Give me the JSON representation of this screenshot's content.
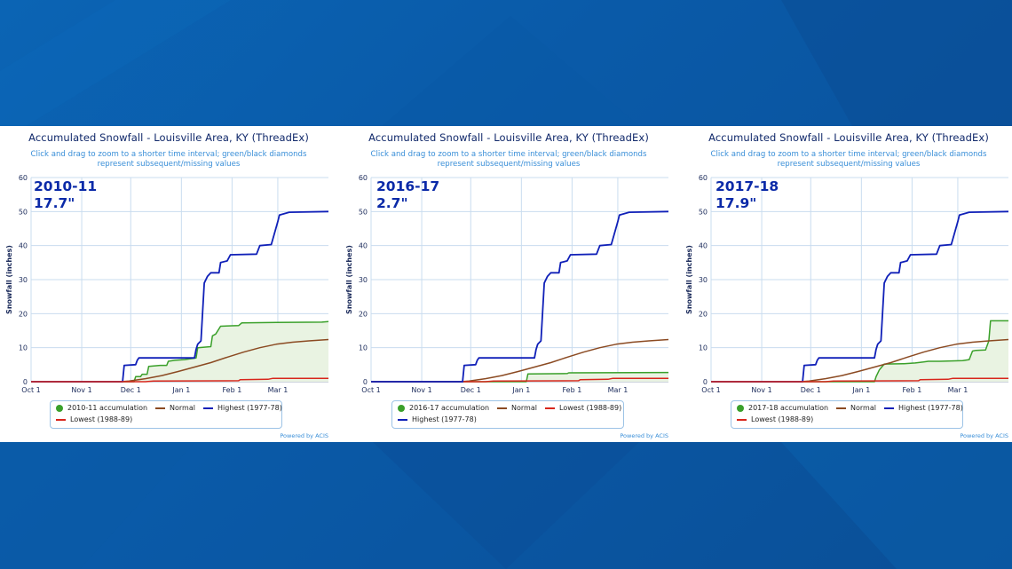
{
  "panels": [
    {
      "title": "Accumulated Snowfall - Louisville Area, KY (ThreadEx)",
      "subtitle": "Click and drag to zoom to a shorter time interval; green/black diamonds represent subsequent/missing values",
      "season": "2010-11",
      "total": "17.7\"",
      "legend": [
        "2010-11 accumulation",
        "Normal",
        "Highest (1977-78)",
        "Lowest (1988-89)"
      ],
      "powered_by": "Powered by ACIS"
    },
    {
      "title": "Accumulated Snowfall - Louisville Area, KY (ThreadEx)",
      "subtitle": "Click and drag to zoom to a shorter time interval; green/black diamonds represent subsequent/missing values",
      "season": "2016-17",
      "total": "2.7\"",
      "legend": [
        "2016-17 accumulation",
        "Normal",
        "Lowest (1988-89)",
        "Highest (1977-78)"
      ],
      "powered_by": "Powered by ACIS"
    },
    {
      "title": "Accumulated Snowfall - Louisville Area, KY (ThreadEx)",
      "subtitle": "Click and drag to zoom to a shorter time interval; green/black diamonds represent subsequent/missing values",
      "season": "2017-18",
      "total": "17.9\"",
      "legend": [
        "2017-18 accumulation",
        "Normal",
        "Highest (1977-78)",
        "Lowest (1988-89)"
      ],
      "powered_by": "Powered by ACIS"
    }
  ],
  "colors": {
    "accumulation": "#3aa02a",
    "accumulation_fill": "#e9f3e2",
    "normal": "#8b4a22",
    "highest": "#1020b8",
    "lowest": "#d8261c",
    "grid": "#c9dcef",
    "axis_text": "#1a2a5a"
  },
  "chart_data": [
    {
      "type": "line",
      "title": "Accumulated Snowfall - Louisville Area, KY (ThreadEx)",
      "ylabel": "Snowfall (inches)",
      "xlabel": "",
      "ylim": [
        0,
        60
      ],
      "yticks": [
        0,
        10,
        20,
        30,
        40,
        50,
        60
      ],
      "x_ticks": [
        {
          "day": 0,
          "label": "Oct 1"
        },
        {
          "day": 31,
          "label": "Nov 1"
        },
        {
          "day": 61,
          "label": "Dec 1"
        },
        {
          "day": 92,
          "label": "Jan 1"
        },
        {
          "day": 123,
          "label": "Feb 1"
        },
        {
          "day": 151,
          "label": "Mar 1"
        }
      ],
      "xlim_days_since_oct1": [
        0,
        182
      ],
      "grid": true,
      "legend_position": "bottom",
      "series": [
        {
          "name": "2010-11 accumulation",
          "points": [
            [
              0,
              0
            ],
            [
              63,
              0
            ],
            [
              64,
              1.5
            ],
            [
              67,
              1.5
            ],
            [
              68,
              2.2
            ],
            [
              71,
              2.2
            ],
            [
              72,
              4.5
            ],
            [
              79,
              4.8
            ],
            [
              83,
              4.8
            ],
            [
              84,
              6.0
            ],
            [
              88,
              6.3
            ],
            [
              94,
              6.5
            ],
            [
              101,
              7.0
            ],
            [
              102,
              10.0
            ],
            [
              110,
              10.3
            ],
            [
              111,
              13.5
            ],
            [
              113,
              14.0
            ],
            [
              116,
              16.3
            ],
            [
              127,
              16.5
            ],
            [
              129,
              17.3
            ],
            [
              150,
              17.4
            ],
            [
              178,
              17.5
            ],
            [
              182,
              17.7
            ]
          ]
        },
        {
          "name": "Normal",
          "points": [
            [
              0,
              0
            ],
            [
              55,
              0
            ],
            [
              60,
              0.2
            ],
            [
              70,
              0.9
            ],
            [
              80,
              1.8
            ],
            [
              90,
              3.0
            ],
            [
              100,
              4.3
            ],
            [
              110,
              5.6
            ],
            [
              120,
              7.2
            ],
            [
              130,
              8.7
            ],
            [
              140,
              10.0
            ],
            [
              150,
              11.0
            ],
            [
              160,
              11.6
            ],
            [
              170,
              12.0
            ],
            [
              182,
              12.4
            ]
          ]
        },
        {
          "name": "Highest (1977-78)",
          "points": [
            [
              0,
              0
            ],
            [
              56,
              0
            ],
            [
              57,
              4.8
            ],
            [
              64,
              5.0
            ],
            [
              65,
              6.3
            ],
            [
              66,
              7.0
            ],
            [
              100,
              7.0
            ],
            [
              101,
              9.5
            ],
            [
              102,
              11.0
            ],
            [
              104,
              12.0
            ],
            [
              106,
              29.0
            ],
            [
              108,
              31.0
            ],
            [
              110,
              32.0
            ],
            [
              115,
              32.0
            ],
            [
              116,
              35.0
            ],
            [
              120,
              35.5
            ],
            [
              122,
              37.3
            ],
            [
              138,
              37.5
            ],
            [
              140,
              40.0
            ],
            [
              147,
              40.3
            ],
            [
              151,
              47.0
            ],
            [
              152,
              49.0
            ],
            [
              158,
              49.8
            ],
            [
              182,
              50.0
            ]
          ]
        },
        {
          "name": "Lowest (1988-89)",
          "points": [
            [
              0,
              0
            ],
            [
              70,
              0
            ],
            [
              75,
              0.2
            ],
            [
              127,
              0.3
            ],
            [
              128,
              0.6
            ],
            [
              145,
              0.7
            ],
            [
              148,
              1.0
            ],
            [
              182,
              1.0
            ]
          ]
        }
      ]
    },
    {
      "type": "line",
      "title": "Accumulated Snowfall - Louisville Area, KY (ThreadEx)",
      "ylabel": "Snowfall (inches)",
      "xlabel": "",
      "ylim": [
        0,
        60
      ],
      "yticks": [
        0,
        10,
        20,
        30,
        40,
        50,
        60
      ],
      "x_ticks": [
        {
          "day": 0,
          "label": "Oct 1"
        },
        {
          "day": 31,
          "label": "Nov 1"
        },
        {
          "day": 61,
          "label": "Dec 1"
        },
        {
          "day": 92,
          "label": "Jan 1"
        },
        {
          "day": 123,
          "label": "Feb 1"
        },
        {
          "day": 151,
          "label": "Mar 1"
        }
      ],
      "xlim_days_since_oct1": [
        0,
        182
      ],
      "grid": true,
      "legend_position": "bottom",
      "series": [
        {
          "name": "2016-17 accumulation",
          "points": [
            [
              0,
              0
            ],
            [
              95,
              0
            ],
            [
              96,
              2.3
            ],
            [
              120,
              2.4
            ],
            [
              121,
              2.6
            ],
            [
              182,
              2.7
            ]
          ]
        },
        {
          "name": "Normal",
          "points": [
            [
              0,
              0
            ],
            [
              55,
              0
            ],
            [
              60,
              0.2
            ],
            [
              70,
              0.9
            ],
            [
              80,
              1.8
            ],
            [
              90,
              3.0
            ],
            [
              100,
              4.3
            ],
            [
              110,
              5.6
            ],
            [
              120,
              7.2
            ],
            [
              130,
              8.7
            ],
            [
              140,
              10.0
            ],
            [
              150,
              11.0
            ],
            [
              160,
              11.6
            ],
            [
              170,
              12.0
            ],
            [
              182,
              12.4
            ]
          ]
        },
        {
          "name": "Lowest (1988-89)",
          "points": [
            [
              0,
              0
            ],
            [
              70,
              0
            ],
            [
              75,
              0.2
            ],
            [
              127,
              0.3
            ],
            [
              128,
              0.6
            ],
            [
              145,
              0.7
            ],
            [
              148,
              1.0
            ],
            [
              182,
              1.0
            ]
          ]
        },
        {
          "name": "Highest (1977-78)",
          "points": [
            [
              0,
              0
            ],
            [
              56,
              0
            ],
            [
              57,
              4.8
            ],
            [
              64,
              5.0
            ],
            [
              65,
              6.3
            ],
            [
              66,
              7.0
            ],
            [
              100,
              7.0
            ],
            [
              101,
              9.5
            ],
            [
              102,
              11.0
            ],
            [
              104,
              12.0
            ],
            [
              106,
              29.0
            ],
            [
              108,
              31.0
            ],
            [
              110,
              32.0
            ],
            [
              115,
              32.0
            ],
            [
              116,
              35.0
            ],
            [
              120,
              35.5
            ],
            [
              122,
              37.3
            ],
            [
              138,
              37.5
            ],
            [
              140,
              40.0
            ],
            [
              147,
              40.3
            ],
            [
              151,
              47.0
            ],
            [
              152,
              49.0
            ],
            [
              158,
              49.8
            ],
            [
              182,
              50.0
            ]
          ]
        }
      ]
    },
    {
      "type": "line",
      "title": "Accumulated Snowfall - Louisville Area, KY (ThreadEx)",
      "ylabel": "Snowfall (inches)",
      "xlabel": "",
      "ylim": [
        0,
        60
      ],
      "yticks": [
        0,
        10,
        20,
        30,
        40,
        50,
        60
      ],
      "x_ticks": [
        {
          "day": 0,
          "label": "Oct 1"
        },
        {
          "day": 31,
          "label": "Nov 1"
        },
        {
          "day": 61,
          "label": "Dec 1"
        },
        {
          "day": 92,
          "label": "Jan 1"
        },
        {
          "day": 123,
          "label": "Feb 1"
        },
        {
          "day": 151,
          "label": "Mar 1"
        }
      ],
      "xlim_days_since_oct1": [
        0,
        182
      ],
      "grid": true,
      "legend_position": "bottom",
      "series": [
        {
          "name": "2017-18 accumulation",
          "points": [
            [
              0,
              0
            ],
            [
              100,
              0
            ],
            [
              101,
              1.5
            ],
            [
              103,
              3.5
            ],
            [
              106,
              5.2
            ],
            [
              118,
              5.3
            ],
            [
              125,
              5.5
            ],
            [
              130,
              5.8
            ],
            [
              133,
              6.0
            ],
            [
              140,
              6.0
            ],
            [
              154,
              6.2
            ],
            [
              158,
              6.5
            ],
            [
              160,
              9.0
            ],
            [
              162,
              9.2
            ],
            [
              168,
              9.3
            ],
            [
              170,
              12.0
            ],
            [
              171,
              17.9
            ],
            [
              182,
              17.9
            ]
          ]
        },
        {
          "name": "Normal",
          "points": [
            [
              0,
              0
            ],
            [
              55,
              0
            ],
            [
              60,
              0.2
            ],
            [
              70,
              0.9
            ],
            [
              80,
              1.8
            ],
            [
              90,
              3.0
            ],
            [
              100,
              4.3
            ],
            [
              110,
              5.6
            ],
            [
              120,
              7.2
            ],
            [
              130,
              8.7
            ],
            [
              140,
              10.0
            ],
            [
              150,
              11.0
            ],
            [
              160,
              11.6
            ],
            [
              170,
              12.0
            ],
            [
              182,
              12.4
            ]
          ]
        },
        {
          "name": "Highest (1977-78)",
          "points": [
            [
              0,
              0
            ],
            [
              56,
              0
            ],
            [
              57,
              4.8
            ],
            [
              64,
              5.0
            ],
            [
              65,
              6.3
            ],
            [
              66,
              7.0
            ],
            [
              100,
              7.0
            ],
            [
              101,
              9.5
            ],
            [
              102,
              11.0
            ],
            [
              104,
              12.0
            ],
            [
              106,
              29.0
            ],
            [
              108,
              31.0
            ],
            [
              110,
              32.0
            ],
            [
              115,
              32.0
            ],
            [
              116,
              35.0
            ],
            [
              120,
              35.5
            ],
            [
              122,
              37.3
            ],
            [
              138,
              37.5
            ],
            [
              140,
              40.0
            ],
            [
              147,
              40.3
            ],
            [
              151,
              47.0
            ],
            [
              152,
              49.0
            ],
            [
              158,
              49.8
            ],
            [
              182,
              50.0
            ]
          ]
        },
        {
          "name": "Lowest (1988-89)",
          "points": [
            [
              0,
              0
            ],
            [
              70,
              0
            ],
            [
              75,
              0.2
            ],
            [
              127,
              0.3
            ],
            [
              128,
              0.6
            ],
            [
              145,
              0.7
            ],
            [
              148,
              1.0
            ],
            [
              182,
              1.0
            ]
          ]
        }
      ]
    }
  ]
}
